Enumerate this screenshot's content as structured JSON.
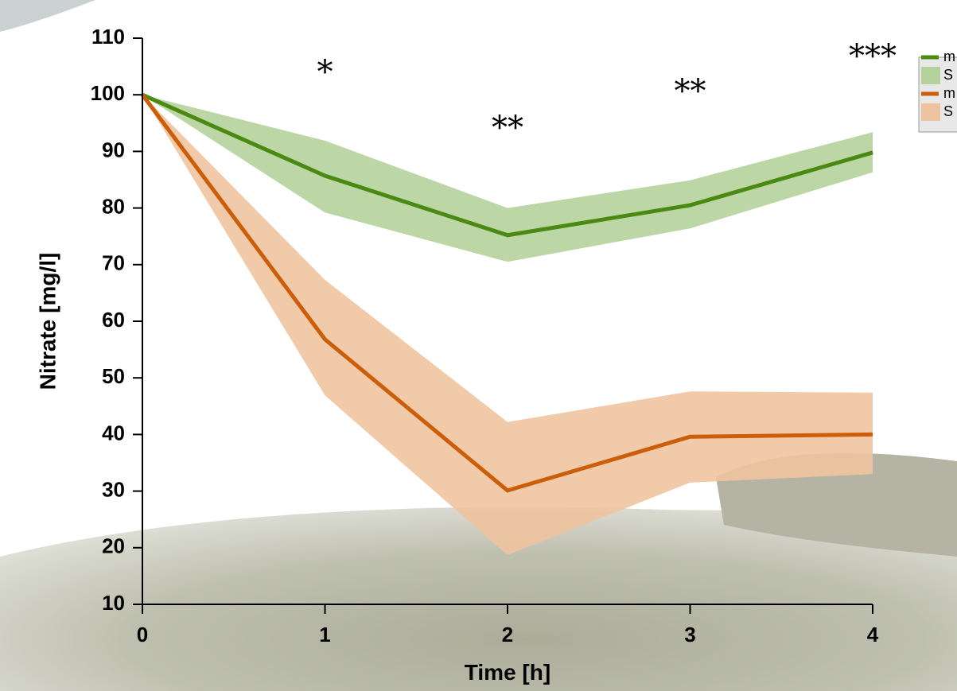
{
  "chart_data": {
    "type": "line",
    "x_label": "Time [h]",
    "y_label": "Nitrate [mg/l]",
    "x": [
      0,
      1,
      2,
      3,
      4
    ],
    "series": [
      {
        "name": "m",
        "color": "#4a8a12",
        "values": [
          100,
          85.7,
          75.2,
          80.5,
          89.8
        ],
        "band": {
          "name": "S",
          "color": "#b5d19c",
          "lower": [
            100,
            79.2,
            70.5,
            76.4,
            86.3
          ],
          "upper": [
            100,
            91.9,
            80,
            84.9,
            93.4
          ]
        }
      },
      {
        "name": "m",
        "color": "#cc5e0a",
        "values": [
          100,
          56.8,
          30.1,
          39.6,
          40
        ],
        "band": {
          "name": "S",
          "color": "#eec4a0",
          "lower": [
            100,
            46.9,
            18.7,
            31.5,
            33
          ],
          "upper": [
            100,
            67.3,
            42.2,
            47.6,
            47.4
          ]
        }
      }
    ],
    "annotations": [
      {
        "x": 1,
        "text": "*"
      },
      {
        "x": 2,
        "text": "**"
      },
      {
        "x": 3,
        "text": "**"
      },
      {
        "x": 4,
        "text": "***"
      }
    ],
    "xlim": [
      0,
      4
    ],
    "xticks": [
      0,
      1,
      2,
      3,
      4
    ],
    "ylim": [
      10,
      110
    ],
    "yticks": [
      10,
      20,
      30,
      40,
      50,
      60,
      70,
      80,
      90,
      100,
      110
    ],
    "legend": "top-right"
  }
}
